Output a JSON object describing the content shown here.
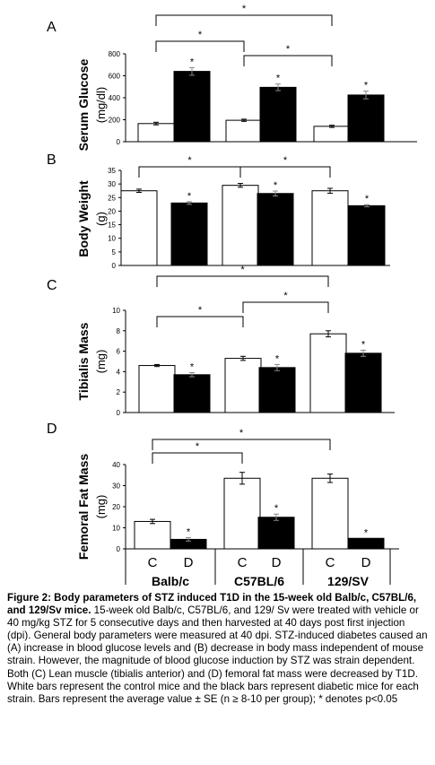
{
  "chart_data": [
    {
      "type": "bar",
      "panel_letter": "A",
      "ylabel": "Serum Glucose",
      "yunit": "(mg/dl)",
      "ylim": [
        0,
        800
      ],
      "yticks": [
        "0",
        "200",
        "400",
        "600",
        "800"
      ],
      "categories": [
        "Balb/c",
        "C57BL/6",
        "129/SV"
      ],
      "series": [
        {
          "role": "control",
          "values": [
            165,
            195,
            140
          ],
          "errors": [
            12,
            10,
            10
          ]
        },
        {
          "role": "diabetic",
          "values": [
            640,
            495,
            425
          ],
          "errors": [
            35,
            30,
            35
          ]
        }
      ],
      "point_marks": [
        "*",
        "*",
        "*"
      ],
      "brackets": [
        {
          "from": "Balb/c",
          "to": "C57BL/6",
          "label": "*"
        },
        {
          "from": "C57BL/6",
          "to": "129/SV",
          "label": "*"
        },
        {
          "from": "Balb/c",
          "to": "129/SV",
          "label": "*"
        }
      ]
    },
    {
      "type": "bar",
      "panel_letter": "B",
      "ylabel": "Body Weight",
      "yunit": "(g)",
      "ylim": [
        0,
        35
      ],
      "yticks": [
        "0",
        "5",
        "10",
        "15",
        "20",
        "25",
        "30",
        "35"
      ],
      "categories": [
        "Balb/c",
        "C57BL/6",
        "129/SV"
      ],
      "series": [
        {
          "role": "control",
          "values": [
            27.5,
            29.5,
            27.5
          ],
          "errors": [
            0.6,
            0.7,
            0.9
          ]
        },
        {
          "role": "diabetic",
          "values": [
            23,
            26.5,
            22
          ],
          "errors": [
            0.5,
            0.9,
            0.4
          ]
        }
      ],
      "point_marks": [
        "*",
        "*",
        "*"
      ],
      "brackets": [
        {
          "from": "Balb/c",
          "to": "C57BL/6",
          "label": "*"
        },
        {
          "from": "C57BL/6",
          "to": "129/SV",
          "label": "*"
        }
      ]
    },
    {
      "type": "bar",
      "panel_letter": "C",
      "ylabel": "Tibialis Mass",
      "yunit": "(mg)",
      "ylim": [
        0,
        10
      ],
      "yticks": [
        "0",
        "2",
        "4",
        "6",
        "8",
        "10"
      ],
      "categories": [
        "Balb/c",
        "C57BL/6",
        "129/SV"
      ],
      "series": [
        {
          "role": "control",
          "values": [
            4.6,
            5.3,
            7.7
          ],
          "errors": [
            0.1,
            0.2,
            0.3
          ]
        },
        {
          "role": "diabetic",
          "values": [
            3.7,
            4.4,
            5.8
          ],
          "errors": [
            0.2,
            0.3,
            0.3
          ]
        }
      ],
      "point_marks": [
        "*",
        "*",
        "*"
      ],
      "brackets": [
        {
          "from": "Balb/c",
          "to": "C57BL/6",
          "label": "*"
        },
        {
          "from": "C57BL/6",
          "to": "129/SV",
          "label": "*"
        },
        {
          "from": "Balb/c",
          "to": "129/SV",
          "label": "*"
        }
      ]
    },
    {
      "type": "bar",
      "panel_letter": "D",
      "ylabel": "Femoral Fat Mass",
      "yunit": "(mg)",
      "ylim": [
        0,
        40
      ],
      "yticks": [
        "0",
        "10",
        "20",
        "30",
        "40"
      ],
      "categories": [
        "Balb/c",
        "C57BL/6",
        "129/SV"
      ],
      "series": [
        {
          "role": "control",
          "values": [
            13,
            33.5,
            33.5
          ],
          "errors": [
            1.0,
            2.8,
            2.0
          ]
        },
        {
          "role": "diabetic",
          "values": [
            4.5,
            15,
            5
          ],
          "errors": [
            0.8,
            1.5,
            0
          ]
        }
      ],
      "point_marks": [
        "*",
        "*",
        "*"
      ],
      "brackets": [
        {
          "from": "Balb/c",
          "to": "C57BL/6",
          "label": "*"
        },
        {
          "from": "Balb/c",
          "to": "129/SV",
          "label": "*"
        }
      ]
    }
  ],
  "group_sublabels": [
    "C",
    "D"
  ],
  "colors": {
    "control": "#ffffff",
    "diabetic": "#000000",
    "axis": "#000000"
  },
  "caption": {
    "lead": "Figure 2: Body parameters of STZ induced T1D in the 15-week old Balb/c, C57BL/6, and 129/Sv mice.",
    "body": " 15-week old Balb/c, C57BL/6, and 129/ Sv were treated with vehicle or 40 mg/kg STZ for 5 consecutive days and then harvested at 40 days post first injection (dpi).  General body parameters were measured at 40 dpi. STZ-induced diabetes caused an (A) increase in blood glucose levels and (B) decrease in body mass independent of mouse strain.  However, the magnitude of blood glucose induction by STZ was strain dependent. Both (C) Lean muscle (tibialis anterior) and (D) femoral fat mass were decreased by T1D. White bars represent the control mice and the black bars represent diabetic mice for each strain. Bars represent the average value ± SE (n ≥ 8-10 per group); * denotes p<0.05"
  }
}
